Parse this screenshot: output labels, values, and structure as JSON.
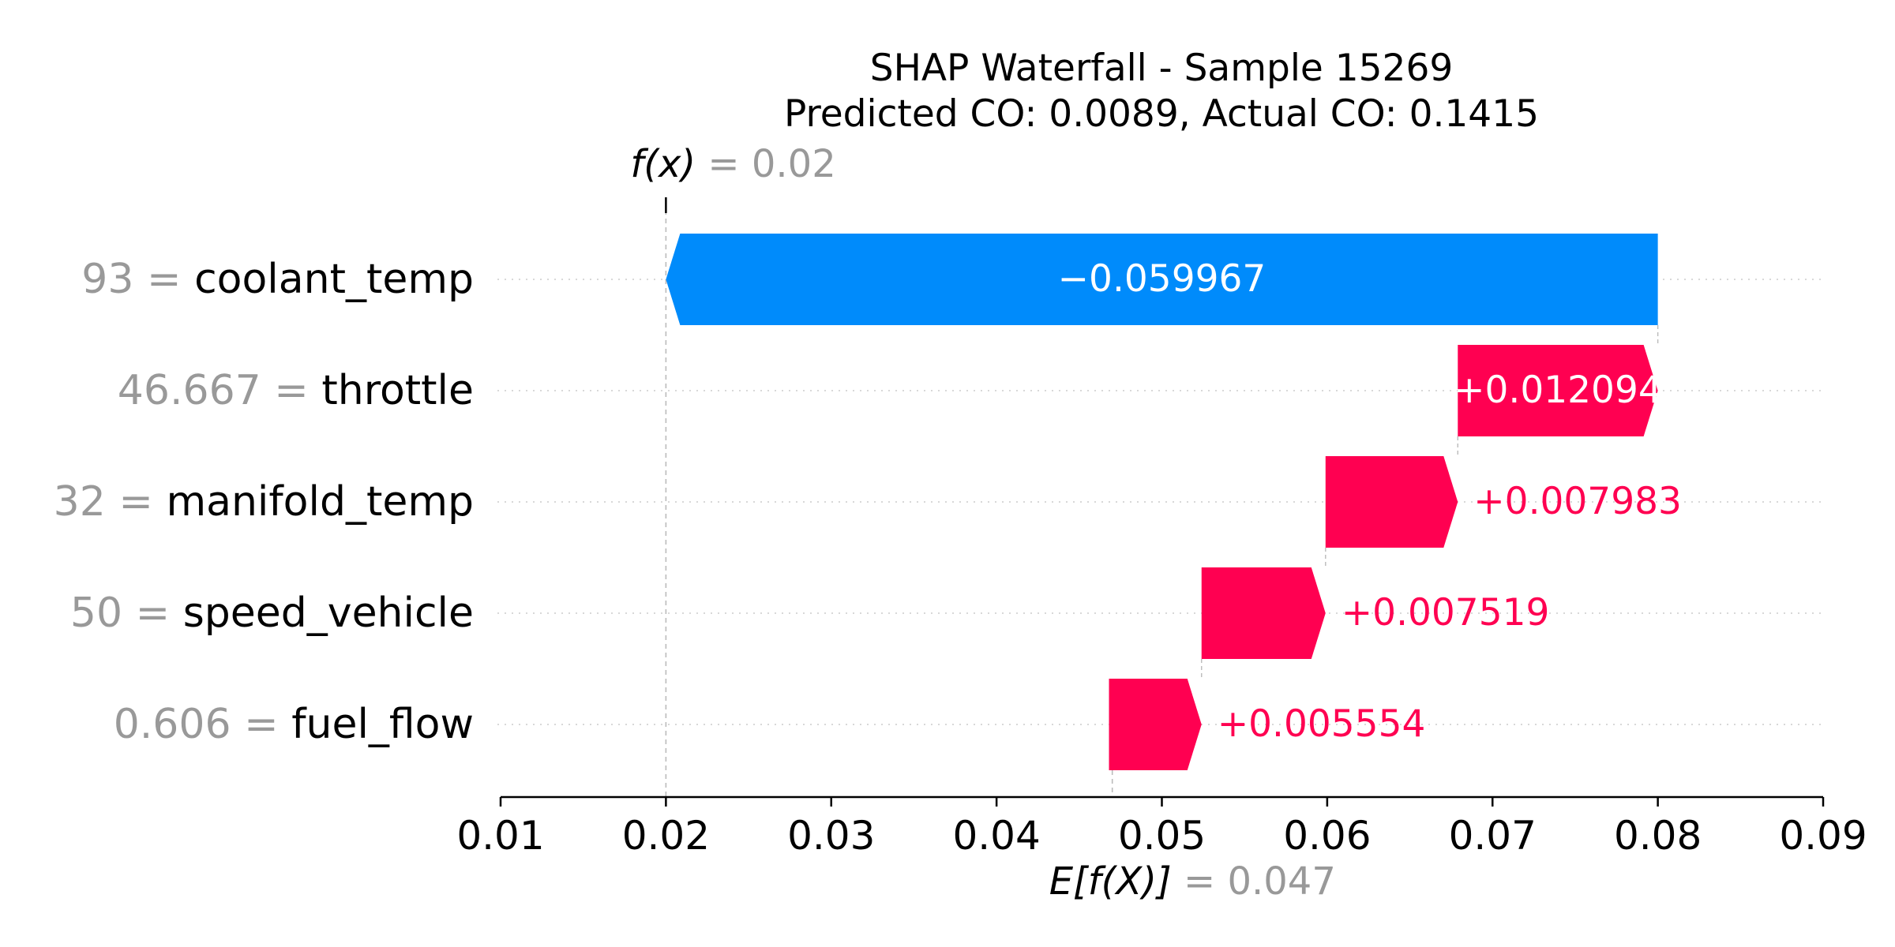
{
  "chart_data": {
    "type": "waterfall",
    "title": "SHAP Waterfall - Sample 15269",
    "subtitle": "Predicted CO: 0.0089, Actual CO: 0.1415",
    "base_value": 0.047,
    "output_value": 0.02,
    "base_label": {
      "expr": "E[f(X)]",
      "eq": "= 0.047"
    },
    "output_label": {
      "expr": "f(x)",
      "eq": "= 0.02"
    },
    "xlim": [
      0.01,
      0.09
    ],
    "xticks": [
      "0.01",
      "0.02",
      "0.03",
      "0.04",
      "0.05",
      "0.06",
      "0.07",
      "0.08",
      "0.09"
    ],
    "grid": false,
    "features": [
      {
        "value_text": "93",
        "name": "coolant_temp",
        "shap": -0.059967,
        "label": "−0.059967",
        "start": 0.08,
        "end": 0.02
      },
      {
        "value_text": "46.667",
        "name": "throttle",
        "shap": 0.012094,
        "label": "+0.012094",
        "start": 0.0679,
        "end": 0.08
      },
      {
        "value_text": "32",
        "name": "manifold_temp",
        "shap": 0.007983,
        "label": "+0.007983",
        "start": 0.0599,
        "end": 0.0679
      },
      {
        "value_text": "50",
        "name": "speed_vehicle",
        "shap": 0.007519,
        "label": "+0.007519",
        "start": 0.0524,
        "end": 0.0599
      },
      {
        "value_text": "0.606",
        "name": "fuel_flow",
        "shap": 0.005554,
        "label": "+0.005554",
        "start": 0.0468,
        "end": 0.0524
      }
    ],
    "colors": {
      "positive": "#ff0051",
      "negative": "#008bfb",
      "feature_value": "#999999",
      "axis": "#000000"
    }
  }
}
